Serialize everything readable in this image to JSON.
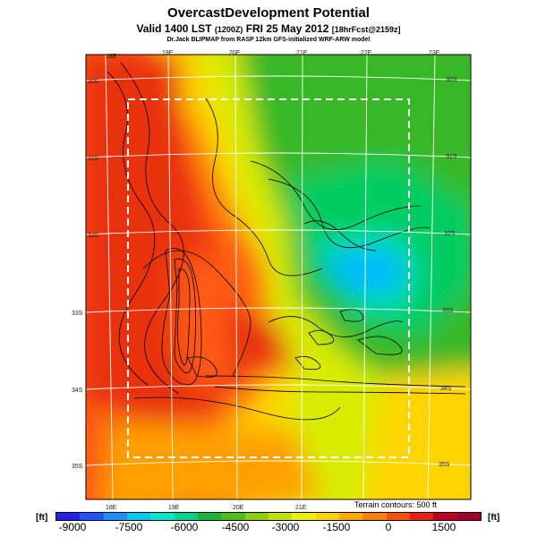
{
  "header": {
    "title": "OvercastDevelopment Potential",
    "subtitle_main": "Valid 1400 LST",
    "subtitle_z": "(1200Z)",
    "subtitle_date": "FRI 25 May 2012",
    "subtitle_fcst": "[18hrFcst@2159z]",
    "credit": "Dr.Jack BLIPMAP from RASP 12km GFS-initialized WRF-ARW model"
  },
  "map": {
    "longitude_labels_top": [
      "18E",
      "19E",
      "20E",
      "21E",
      "22E",
      "23E"
    ],
    "longitude_labels_bottom": [
      "18E",
      "19E",
      "20E",
      "21E"
    ],
    "latitude_labels_left": [
      "30S",
      "31S",
      "32S",
      "33S",
      "34S",
      "35S"
    ],
    "latitude_labels_right": [
      "30S",
      "31S",
      "32S",
      "33S",
      "34S",
      "35S"
    ],
    "contour_note": "Terrain contours: 500 ft"
  },
  "colorbar": {
    "unit_left": "[ft]",
    "unit_right": "[ft]",
    "labels": [
      "-9000",
      "-7500",
      "-6000",
      "-4500",
      "-3000",
      "-1500",
      "0",
      "1500"
    ],
    "colors": [
      "#2222ee",
      "#1e55ff",
      "#1a90ff",
      "#00c8f0",
      "#00e8c8",
      "#00d488",
      "#18b438",
      "#4cc018",
      "#8cd000",
      "#c4e000",
      "#eef000",
      "#ffd200",
      "#ffaa00",
      "#ff7f00",
      "#ff5000",
      "#e62010",
      "#c00020",
      "#a00030"
    ]
  },
  "field": {
    "colors": [
      "#e83010",
      "#ff5a14",
      "#ffa000",
      "#ffd400",
      "#d8ec00",
      "#8ed000",
      "#38b828",
      "#00cc60",
      "#00e0b0",
      "#00e8e0",
      "#00b8ff"
    ]
  }
}
